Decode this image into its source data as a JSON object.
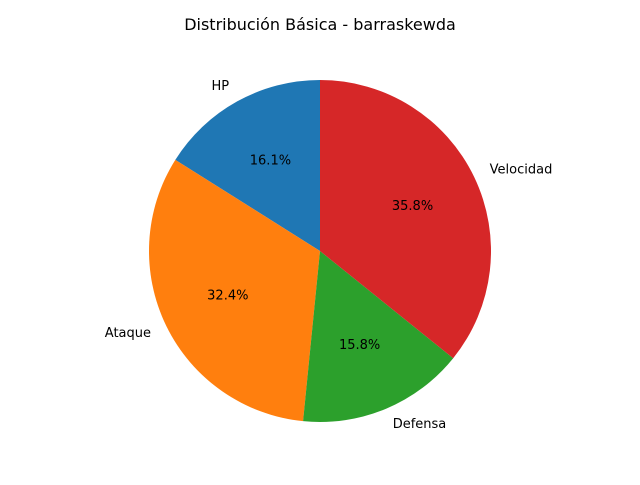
{
  "chart_data": {
    "type": "pie",
    "title": "Distribución Básica - barraskewda",
    "labels": [
      "HP",
      "Ataque",
      "Defensa",
      "Velocidad"
    ],
    "values": [
      61,
      123,
      60,
      136
    ],
    "percent_labels": [
      "16.1%",
      "32.4%",
      "15.8%",
      "35.8%"
    ],
    "colors": [
      "#1f77b4",
      "#ff7f0e",
      "#2ca02c",
      "#d62728"
    ],
    "start_angle_deg": 90,
    "direction": "counterclockwise",
    "legend": false
  }
}
